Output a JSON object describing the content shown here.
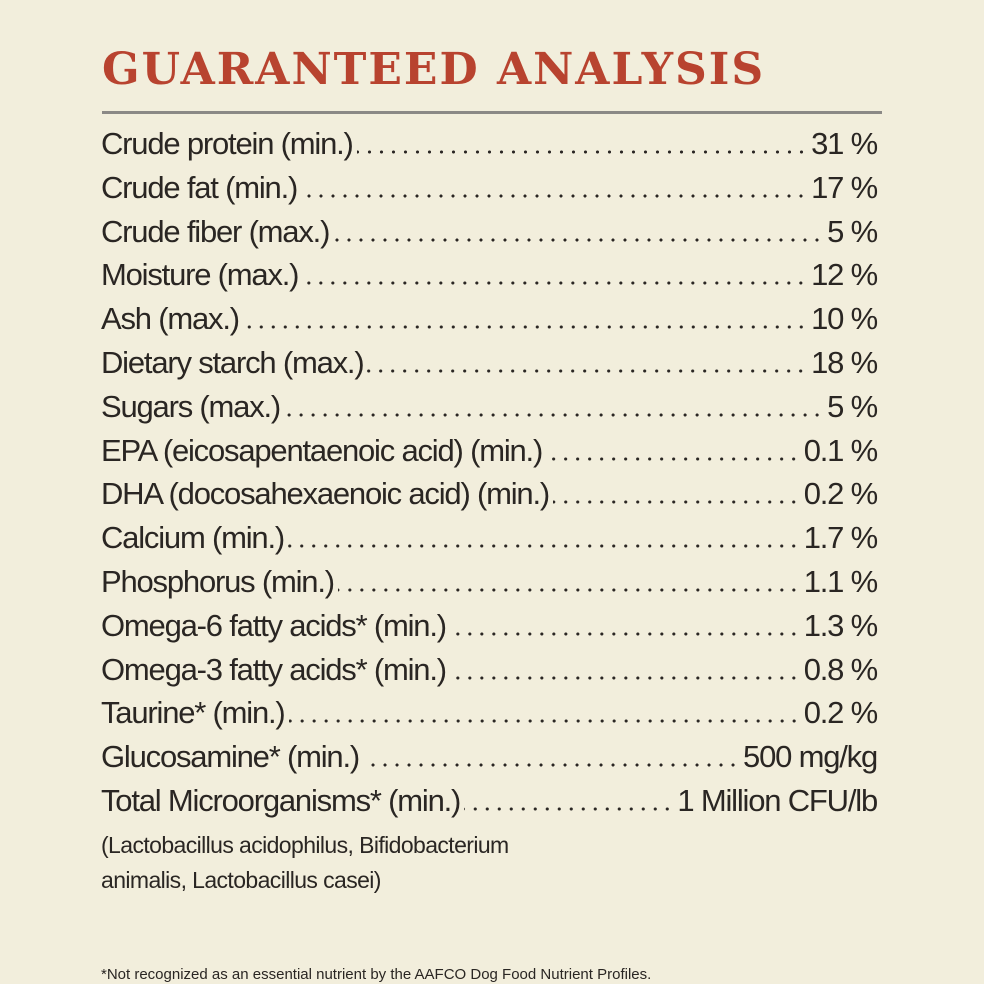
{
  "header": {
    "title": "GUARANTEED ANALYSIS"
  },
  "table": {
    "rows": [
      {
        "label": "Crude protein (min.)",
        "value": "31 %"
      },
      {
        "label": "Crude fat (min.)",
        "value": "17 %"
      },
      {
        "label": "Crude fiber (max.)",
        "value": "5 %"
      },
      {
        "label": "Moisture (max.)",
        "value": "12 %"
      },
      {
        "label": "Ash (max.)",
        "value": "10 %"
      },
      {
        "label": "Dietary starch (max.)",
        "value": "18 %"
      },
      {
        "label": "Sugars (max.)",
        "value": "5 %"
      },
      {
        "label": "EPA (eicosapentaenoic acid) (min.)",
        "value": "0.1 %"
      },
      {
        "label": "DHA (docosahexaenoic acid) (min.)",
        "value": "0.2 %"
      },
      {
        "label": "Calcium (min.)",
        "value": "1.7 %"
      },
      {
        "label": "Phosphorus (min.)",
        "value": "1.1 %"
      },
      {
        "label": "Omega-6 fatty acids* (min.)",
        "value": "1.3 %"
      },
      {
        "label": "Omega-3 fatty acids* (min.)",
        "value": "0.8 %"
      },
      {
        "label": "Taurine* (min.)",
        "value": "0.2 %"
      },
      {
        "label": "Glucosamine* (min.)",
        "value": "500 mg/kg"
      },
      {
        "label": "Total Microorganisms* (min.)",
        "value": "1 Million CFU/lb"
      }
    ],
    "note": [
      "(Lactobacillus acidophilus, Bifidobacterium",
      "animalis, Lactobacillus casei)"
    ]
  },
  "footnote": "*Not recognized as an essential nutrient by the AAFCO Dog Food Nutrient Profiles."
}
